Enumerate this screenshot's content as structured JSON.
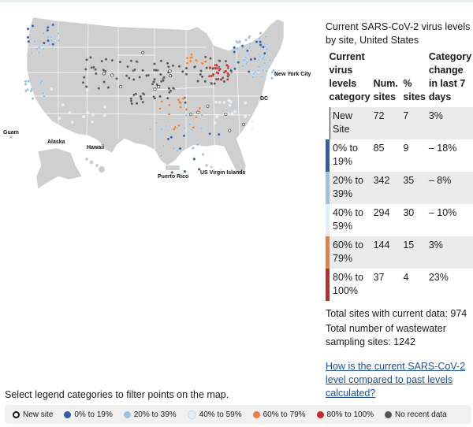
{
  "colors": {
    "new_site": "#ffffff",
    "0_19": "#2f5fa8",
    "20_39": "#9cc1e0",
    "40_59": "#e1eef8",
    "60_79": "#e57f44",
    "80_100": "#c02b25",
    "no_recent": "#555555",
    "land": "#cfcfcf",
    "border": "#ffffff"
  },
  "map": {
    "labels": {
      "guam": "Guam",
      "alaska": "Alaska",
      "hawaii": "Hawaii",
      "puerto_rico": "Puerto Rico",
      "usvi": "US Virgin Islands",
      "nyc": "New York City",
      "dc": "DC"
    }
  },
  "panel": {
    "title": "Current SARS-CoV-2 virus levels by site, United States",
    "headers": [
      "Current virus levels category",
      "Num. sites",
      "% sites",
      "Category change in last 7 days"
    ],
    "rows": [
      {
        "category": "New Site",
        "num": "72",
        "pct": "7",
        "change": "3%",
        "color_key": "new_site"
      },
      {
        "category": "0% to 19%",
        "num": "85",
        "pct": "9",
        "change": "– 18%",
        "color_key": "0_19"
      },
      {
        "category": "20% to 39%",
        "num": "342",
        "pct": "35",
        "change": "– 8%",
        "color_key": "20_39"
      },
      {
        "category": "40% to 59%",
        "num": "294",
        "pct": "30",
        "change": "– 10%",
        "color_key": "40_59"
      },
      {
        "category": "60% to 79%",
        "num": "144",
        "pct": "15",
        "change": "3%",
        "color_key": "60_79"
      },
      {
        "category": "80% to 100%",
        "num": "37",
        "pct": "4",
        "change": "23%",
        "color_key": "80_100"
      }
    ],
    "total_current": "Total sites with current data: 974",
    "total_all": "Total number of wastewater sampling sites: 1242",
    "help_link": "How is the current SARS-CoV-2 level compared to past levels calculated?"
  },
  "legend": {
    "prompt": "Select legend categories to filter points on the map.",
    "items": [
      {
        "label": "New site",
        "color_key": "new_site",
        "hollow": true
      },
      {
        "label": "0% to 19%",
        "color_key": "0_19"
      },
      {
        "label": "20% to 39%",
        "color_key": "20_39"
      },
      {
        "label": "40% to 59%",
        "color_key": "40_59"
      },
      {
        "label": "60% to 79%",
        "color_key": "60_79"
      },
      {
        "label": "80% to 100%",
        "color_key": "80_100"
      },
      {
        "label": "No recent data",
        "color_key": "no_recent"
      }
    ]
  }
}
